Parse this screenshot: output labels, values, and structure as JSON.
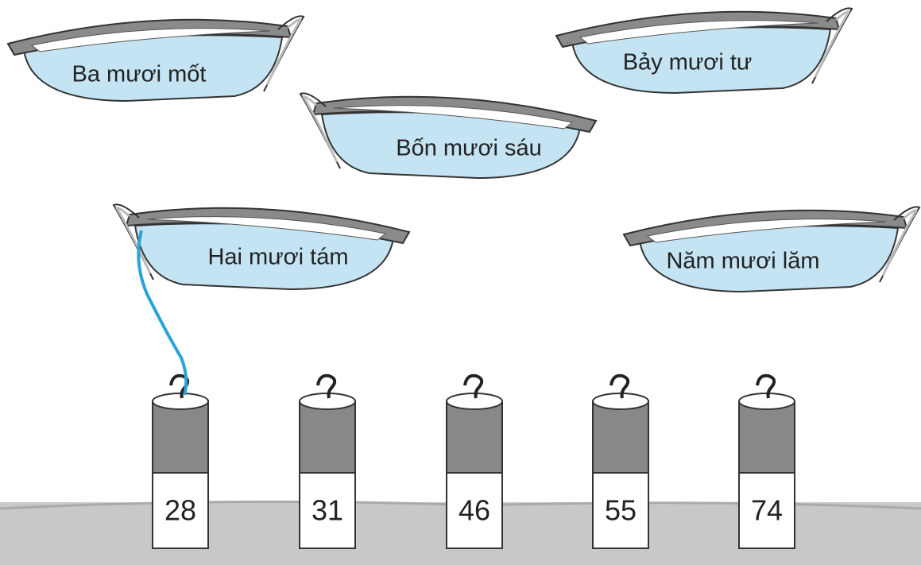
{
  "boats": [
    {
      "label": "Ba mươi mốt"
    },
    {
      "label": "Bảy mươi tư"
    },
    {
      "label": "Bốn mươi sáu"
    },
    {
      "label": "Hai mươi tám"
    },
    {
      "label": "Năm mươi lăm"
    }
  ],
  "posts": [
    {
      "label": "28"
    },
    {
      "label": "31"
    },
    {
      "label": "46"
    },
    {
      "label": "55"
    },
    {
      "label": "74"
    }
  ]
}
